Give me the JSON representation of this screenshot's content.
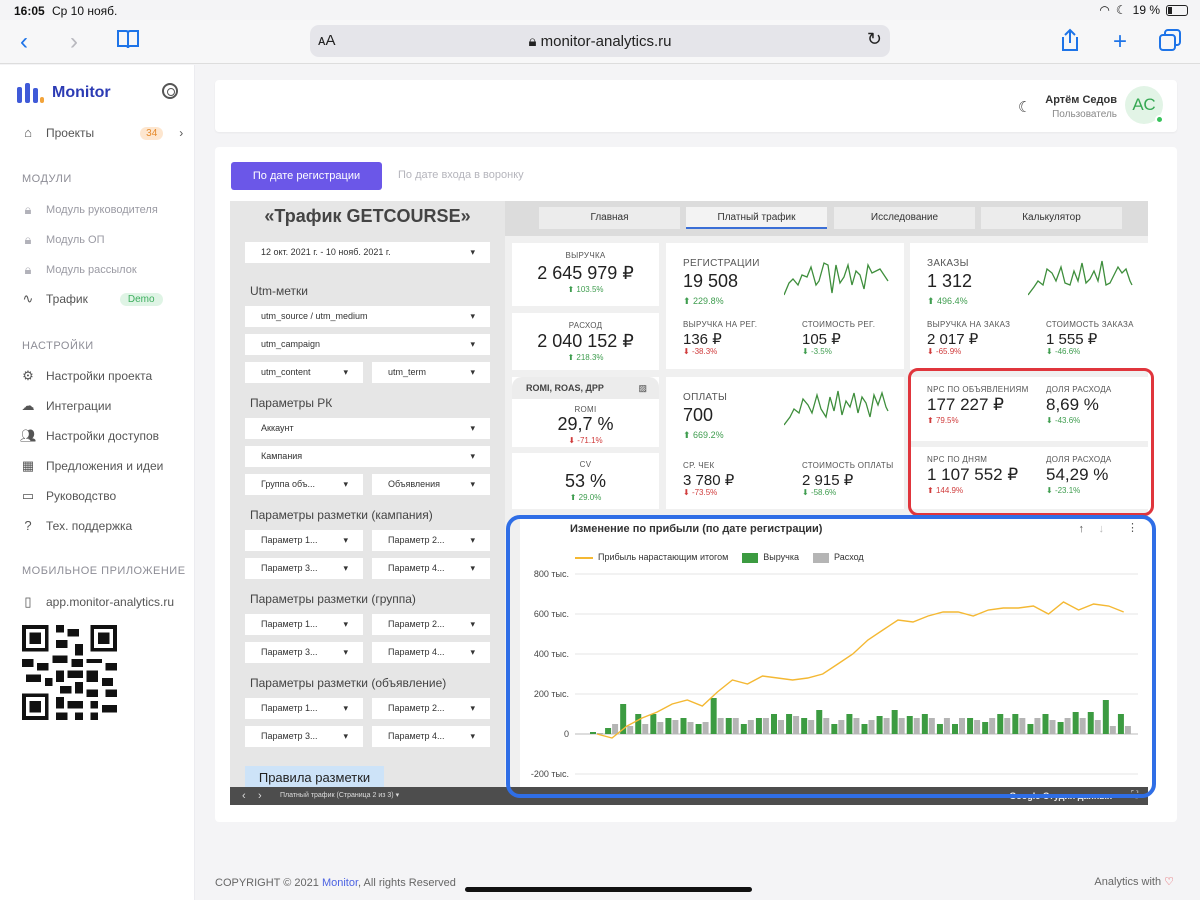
{
  "status": {
    "time": "16:05",
    "date": "Ср 10 нояб.",
    "battery": "19 %"
  },
  "browser": {
    "aa": "ᴀA",
    "url": "monitor-analytics.ru"
  },
  "sidebar": {
    "brand": "Monitor",
    "projects": {
      "label": "Проекты",
      "count": "34"
    },
    "modules_title": "МОДУЛИ",
    "modules": [
      {
        "label": "Модуль руководителя"
      },
      {
        "label": "Модуль ОП"
      },
      {
        "label": "Модуль рассылок"
      }
    ],
    "traffic": {
      "label": "Трафик",
      "badge": "Demo"
    },
    "settings_title": "НАСТРОЙКИ",
    "settings": [
      {
        "label": "Настройки проекта"
      },
      {
        "label": "Интеграции"
      },
      {
        "label": "Настройки доступов"
      },
      {
        "label": "Предложения и идеи"
      },
      {
        "label": "Руководство"
      },
      {
        "label": "Тех. поддержка"
      }
    ],
    "mobile_title": "МОБИЛЬНОЕ ПРИЛОЖЕНИЕ",
    "mobile_link": "app.monitor-analytics.ru"
  },
  "header": {
    "user_name": "Артём Седов",
    "user_role": "Пользователь",
    "initials": "АС"
  },
  "main": {
    "btn_registration": "По дате регистрации",
    "btn_funnel": "По дате входа в воронку"
  },
  "report": {
    "title": "«Трафик GETCOURSE»",
    "date_range": "12 окт. 2021 г. - 10 нояб. 2021 г.",
    "utm_label": "Utm-метки",
    "utm_source": "utm_source / utm_medium",
    "utm_campaign": "utm_campaign",
    "utm_content": "utm_content",
    "utm_term": "utm_term",
    "rk_label": "Параметры РК",
    "account": "Аккаунт",
    "campaign": "Кампания",
    "group": "Группа объ...",
    "ads": "Объявления",
    "markup_campaign": "Параметры разметки (кампания)",
    "markup_group": "Параметры разметки (группа)",
    "markup_ad": "Параметры разметки (объявление)",
    "p1": "Параметр 1...",
    "p2": "Параметр 2...",
    "p3": "Параметр 3...",
    "p4": "Параметр 4...",
    "rules": "Правила разметки",
    "tabs": [
      "Главная",
      "Платный трафик",
      "Исследование",
      "Калькулятор"
    ],
    "footer_page": "Платный трафик (Страница 2 из 3)",
    "footer_brand": "Google Студия данных"
  },
  "kpis": {
    "revenue": {
      "label": "ВЫРУЧКА",
      "value": "2 645 979 ₽",
      "delta": "103.5%"
    },
    "expense": {
      "label": "РАСХОД",
      "value": "2 040 152 ₽",
      "delta": "218.3%"
    },
    "romi_head": "ROMI, ROAS, ДРР",
    "romi": {
      "label": "ROMI",
      "value": "29,7 %",
      "delta": "-71.1%"
    },
    "cv": {
      "label": "CV",
      "value": "53 %",
      "delta": "29.0%"
    },
    "registrations": {
      "label": "РЕГИСТРАЦИИ",
      "value": "19 508",
      "delta": "229.8%"
    },
    "rev_per_reg": {
      "label": "ВЫРУЧКА НА РЕГ.",
      "value": "136 ₽",
      "delta": "-38.3%"
    },
    "cost_reg": {
      "label": "СТОИМОСТЬ РЕГ.",
      "value": "105 ₽",
      "delta": "-3.5%"
    },
    "orders": {
      "label": "ЗАКАЗЫ",
      "value": "1 312",
      "delta": "496.4%"
    },
    "rev_per_order": {
      "label": "ВЫРУЧКА НА ЗАКАЗ",
      "value": "2 017 ₽",
      "delta": "-65.9%"
    },
    "cost_order": {
      "label": "СТОИМОСТЬ ЗАКАЗА",
      "value": "1 555 ₽",
      "delta": "-46.6%"
    },
    "payments": {
      "label": "ОПЛАТЫ",
      "value": "700",
      "delta": "669.2%"
    },
    "avg_check": {
      "label": "СР. ЧЕК",
      "value": "3 780 ₽",
      "delta": "-73.5%"
    },
    "cost_payment": {
      "label": "СТОИМОСТЬ ОПЛАТЫ",
      "value": "2 915 ₽",
      "delta": "-58.6%"
    },
    "npc_ads": {
      "label": "NPC ПО ОБЪЯВЛЕНИЯМ",
      "value": "177 227 ₽",
      "delta": "79.5%"
    },
    "share_ads": {
      "label": "ДОЛЯ РАСХОДА",
      "value": "8,69 %",
      "delta": "-43.6%"
    },
    "npc_days": {
      "label": "NPC ПО ДНЯМ",
      "value": "1 107 552 ₽",
      "delta": "144.9%"
    },
    "share_days": {
      "label": "ДОЛЯ РАСХОДА",
      "value": "54,29 %",
      "delta": "-23.1%"
    }
  },
  "chart_data": {
    "type": "bar",
    "title": "Изменение по прибыли (по дате регистрации)",
    "ylim": [
      -200,
      800
    ],
    "y_ticks": [
      "800 тыс.",
      "600 тыс.",
      "400 тыс.",
      "200 тыс.",
      "0",
      "-200 тыс."
    ],
    "series": [
      {
        "name": "Прибыль нарастающим итогом",
        "type": "line",
        "color": "#f4b833",
        "values": [
          0,
          -20,
          40,
          80,
          110,
          150,
          170,
          140,
          210,
          270,
          250,
          290,
          280,
          270,
          280,
          300,
          350,
          400,
          470,
          520,
          570,
          560,
          590,
          610,
          610,
          590,
          620,
          630,
          630,
          640,
          600,
          660,
          620,
          650,
          640,
          610
        ]
      },
      {
        "name": "Выручка",
        "type": "bar",
        "color": "#3c9b41",
        "values": [
          10,
          30,
          150,
          100,
          100,
          80,
          80,
          50,
          180,
          80,
          50,
          80,
          100,
          100,
          80,
          120,
          50,
          100,
          50,
          90,
          120,
          90,
          100,
          50,
          50,
          80,
          60,
          100,
          100,
          50,
          100,
          60,
          110,
          110,
          170,
          100
        ]
      },
      {
        "name": "Расход",
        "type": "bar",
        "color": "#b5b5b5",
        "values": [
          5,
          50,
          40,
          50,
          60,
          70,
          60,
          60,
          80,
          80,
          70,
          80,
          70,
          90,
          70,
          80,
          70,
          80,
          70,
          80,
          80,
          80,
          80,
          80,
          80,
          70,
          80,
          80,
          80,
          80,
          70,
          80,
          80,
          70,
          40,
          40
        ]
      }
    ]
  }
}
